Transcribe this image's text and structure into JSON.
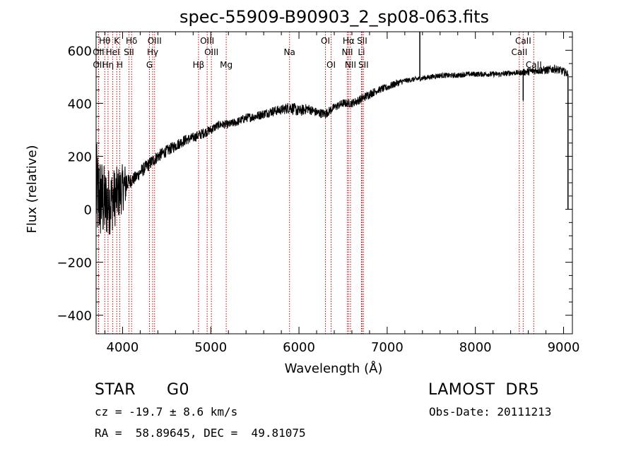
{
  "chart_data": {
    "type": "line",
    "title": "spec-55909-B90903_2_sp08-063.fits",
    "xlabel": "Wavelength (Å)",
    "ylabel": "Flux (relative)",
    "xlim": [
      3700,
      9100
    ],
    "ylim": [
      -470,
      670
    ],
    "xticks": [
      4000,
      5000,
      6000,
      7000,
      8000,
      9000
    ],
    "yticks": [
      -400,
      -200,
      0,
      200,
      400,
      600
    ],
    "grid": false,
    "series": [
      {
        "color": "#000000",
        "x": [
          3700,
          3750,
          3800,
          3850,
          3900,
          3950,
          4000,
          4050,
          4100,
          4150,
          4200,
          4300,
          4400,
          4500,
          4600,
          4700,
          4800,
          4900,
          5000,
          5100,
          5200,
          5300,
          5400,
          5500,
          5600,
          5700,
          5800,
          5900,
          6000,
          6100,
          6200,
          6300,
          6400,
          6500,
          6600,
          6700,
          6800,
          6900,
          7000,
          7100,
          7200,
          7300,
          7400,
          7500,
          7600,
          7700,
          7800,
          7900,
          8000,
          8100,
          8200,
          8300,
          8400,
          8500,
          8600,
          8700,
          8800,
          8900,
          9000,
          9050
        ],
        "y": [
          60,
          40,
          20,
          30,
          40,
          60,
          80,
          100,
          110,
          120,
          140,
          170,
          200,
          220,
          240,
          260,
          270,
          285,
          300,
          320,
          320,
          330,
          345,
          350,
          360,
          370,
          375,
          385,
          370,
          380,
          365,
          360,
          385,
          400,
          400,
          415,
          435,
          450,
          460,
          475,
          485,
          490,
          495,
          500,
          505,
          505,
          505,
          510,
          510,
          510,
          510,
          510,
          515,
          515,
          520,
          525,
          525,
          530,
          520,
          510
        ],
        "noise": [
          0.75,
          0.65,
          0.55,
          0.5,
          0.45,
          0.4,
          0.35,
          0.3,
          0.25,
          0.2,
          0.18,
          0.15,
          0.12,
          0.1,
          0.09,
          0.08,
          0.07,
          0.07,
          0.06,
          0.05,
          0.05,
          0.05,
          0.05,
          0.05,
          0.05,
          0.05,
          0.05,
          0.06,
          0.06,
          0.05,
          0.05,
          0.05,
          0.04,
          0.04,
          0.04,
          0.04,
          0.04,
          0.03,
          0.03,
          0.03,
          0.02,
          0.02,
          0.02,
          0.02,
          0.02,
          0.02,
          0.02,
          0.02,
          0.02,
          0.02,
          0.02,
          0.02,
          0.02,
          0.02,
          0.03,
          0.03,
          0.03,
          0.03,
          0.03,
          0.03
        ]
      }
    ],
    "features": [
      {
        "x": 7370,
        "ytop": 670
      },
      {
        "x": 8542,
        "ytop": 410
      },
      {
        "x": 9050,
        "ytop": 0
      }
    ],
    "lines": [
      {
        "label": "Hθ",
        "x": 3798,
        "row": 0
      },
      {
        "label": "OII",
        "x": 3727,
        "row": 1
      },
      {
        "label": "OII",
        "x": 3729,
        "row": 2
      },
      {
        "label": "Hη",
        "x": 3835,
        "row": 2
      },
      {
        "label": "HeI",
        "x": 3889,
        "row": 1
      },
      {
        "label": "K",
        "x": 3934,
        "row": 0
      },
      {
        "label": "H",
        "x": 3969,
        "row": 2
      },
      {
        "label": "SII",
        "x": 4072,
        "row": 1
      },
      {
        "label": "Hδ",
        "x": 4102,
        "row": 0
      },
      {
        "label": "OIII",
        "x": 4363,
        "row": 0
      },
      {
        "label": "Hγ",
        "x": 4341,
        "row": 1
      },
      {
        "label": "G",
        "x": 4305,
        "row": 2
      },
      {
        "label": "Hβ",
        "x": 4861,
        "row": 2
      },
      {
        "label": "OIII",
        "x": 4959,
        "row": 0
      },
      {
        "label": "OIII",
        "x": 5007,
        "row": 1
      },
      {
        "label": "Mg",
        "x": 5175,
        "row": 2
      },
      {
        "label": "Na",
        "x": 5893,
        "row": 1
      },
      {
        "label": "OI",
        "x": 6300,
        "row": 0
      },
      {
        "label": "OI",
        "x": 6364,
        "row": 2
      },
      {
        "label": "Hα",
        "x": 6563,
        "row": 0
      },
      {
        "label": "NII",
        "x": 6548,
        "row": 1
      },
      {
        "label": "NII",
        "x": 6584,
        "row": 2
      },
      {
        "label": "SII",
        "x": 6716,
        "row": 0
      },
      {
        "label": "Li",
        "x": 6708,
        "row": 1
      },
      {
        "label": "SII",
        "x": 6731,
        "row": 2
      },
      {
        "label": "CaII",
        "x": 8498,
        "row": 1
      },
      {
        "label": "CaII",
        "x": 8542,
        "row": 0
      },
      {
        "label": "CaII",
        "x": 8662,
        "row": 2
      }
    ]
  },
  "info": {
    "object_class": "STAR",
    "subclass": "G0",
    "survey": "LAMOST  DR5",
    "redshift_text": "cz = -19.7 ± 8.6 km/s",
    "obs_date_text": "Obs-Date: 20111213",
    "coords_text": "RA =  58.89645, DEC =  49.81075"
  },
  "colors": {
    "axis": "#000000",
    "spectrum": "#000000",
    "line_marker": "#cc0000",
    "background": "#ffffff"
  }
}
